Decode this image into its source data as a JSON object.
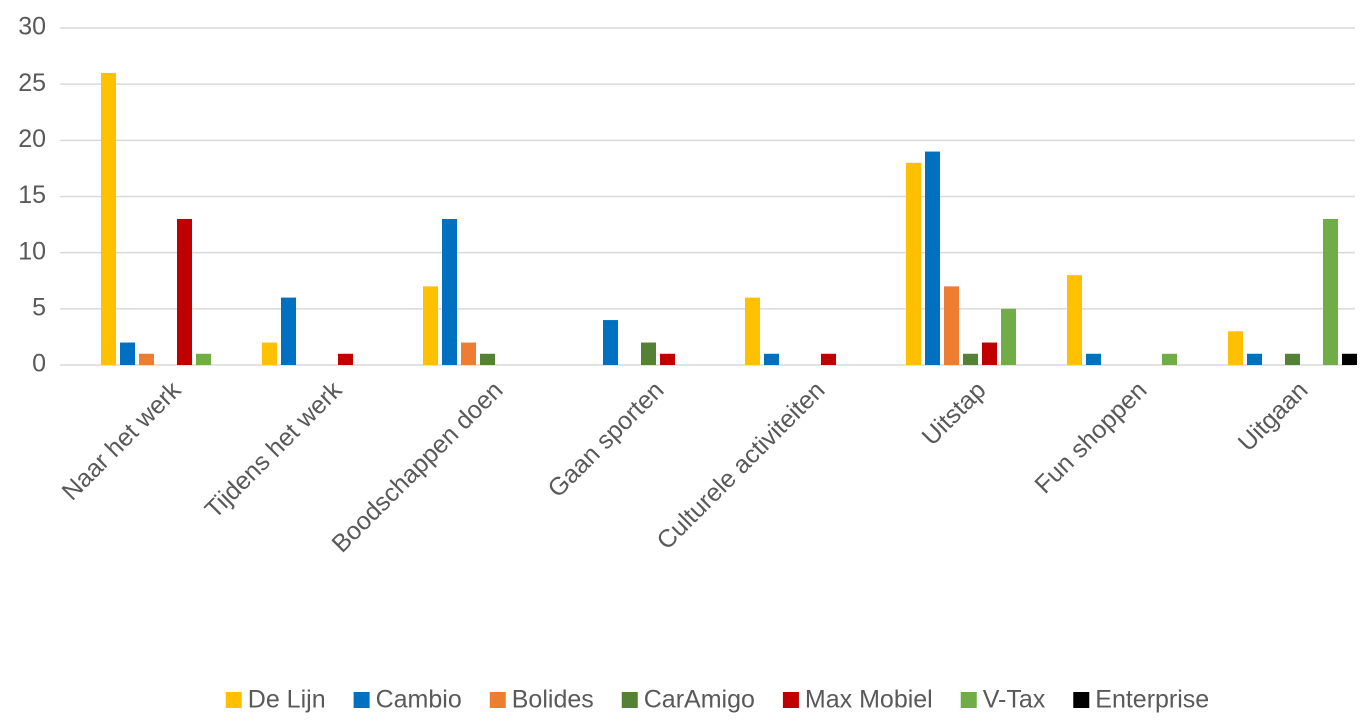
{
  "chart_data": {
    "type": "bar",
    "categories": [
      "Naar het werk",
      "Tijdens het werk",
      "Boodschappen doen",
      "Gaan sporten",
      "Culturele activiteiten",
      "Uitstap",
      "Fun shoppen",
      "Uitgaan"
    ],
    "series": [
      {
        "name": "De Lijn",
        "color": "#ffc000",
        "values": [
          26,
          2,
          7,
          0,
          6,
          18,
          8,
          3
        ]
      },
      {
        "name": "Cambio",
        "color": "#0070c0",
        "values": [
          2,
          6,
          13,
          4,
          1,
          19,
          1,
          1
        ]
      },
      {
        "name": "Bolides",
        "color": "#ed7d31",
        "values": [
          1,
          0,
          2,
          0,
          0,
          7,
          0,
          0
        ]
      },
      {
        "name": "CarAmigo",
        "color": "#548235",
        "values": [
          0,
          0,
          1,
          2,
          0,
          1,
          0,
          1
        ]
      },
      {
        "name": "Max Mobiel",
        "color": "#c00000",
        "values": [
          13,
          1,
          0,
          1,
          1,
          2,
          0,
          0
        ]
      },
      {
        "name": "V-Tax",
        "color": "#70ad47",
        "values": [
          1,
          0,
          0,
          0,
          0,
          5,
          1,
          13
        ]
      },
      {
        "name": "Enterprise",
        "color": "#000000",
        "values": [
          0,
          0,
          0,
          0,
          0,
          0,
          0,
          1
        ]
      }
    ],
    "ylim": [
      0,
      30
    ],
    "yticks": [
      0,
      5,
      10,
      15,
      20,
      25,
      30
    ],
    "grid": true,
    "legend": "bottom"
  }
}
